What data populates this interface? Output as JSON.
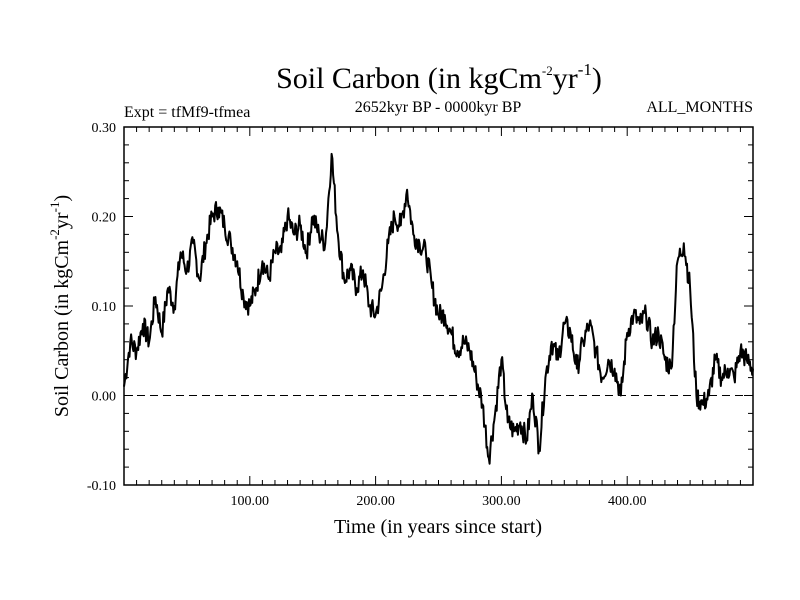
{
  "chart_data": {
    "type": "line",
    "title": {
      "base": "Soil Carbon (in kgCm",
      "sup1": "-2",
      "mid": "yr",
      "sup2": "-1",
      "end": ")"
    },
    "left_label": "Expt = tfMf9-tfmea",
    "center_label": "2652kyr BP - 0000kyr BP",
    "right_label": "ALL_MONTHS",
    "xlabel": "Time (in years since start)",
    "ylabel": {
      "base": "Soil Carbon (in kgCm",
      "sup1": "-2",
      "mid": "yr",
      "sup2": "-1",
      "end": ")"
    },
    "xlim": [
      0,
      500
    ],
    "ylim": [
      -0.1,
      0.3
    ],
    "x_ticks": [
      {
        "value": 100,
        "label": "100.00"
      },
      {
        "value": 200,
        "label": "200.00"
      },
      {
        "value": 300,
        "label": "300.00"
      },
      {
        "value": 400,
        "label": "400.00"
      }
    ],
    "y_ticks": [
      {
        "value": -0.1,
        "label": "-0.10"
      },
      {
        "value": 0.0,
        "label": "0.00"
      },
      {
        "value": 0.1,
        "label": "0.10"
      },
      {
        "value": 0.2,
        "label": "0.20"
      },
      {
        "value": 0.3,
        "label": "0.30"
      }
    ],
    "reference_line": 0.0,
    "series": [
      {
        "name": "Soil Carbon",
        "x": [
          0,
          5,
          10,
          15,
          20,
          25,
          30,
          35,
          40,
          45,
          50,
          55,
          60,
          65,
          70,
          75,
          80,
          85,
          90,
          95,
          100,
          105,
          110,
          115,
          120,
          125,
          130,
          135,
          140,
          145,
          150,
          155,
          160,
          165,
          170,
          175,
          180,
          185,
          190,
          195,
          200,
          205,
          210,
          215,
          220,
          225,
          230,
          235,
          240,
          245,
          250,
          255,
          260,
          265,
          270,
          275,
          280,
          285,
          290,
          295,
          300,
          305,
          310,
          315,
          320,
          325,
          330,
          335,
          340,
          345,
          350,
          355,
          360,
          365,
          370,
          375,
          380,
          385,
          390,
          395,
          400,
          405,
          410,
          415,
          420,
          425,
          430,
          435,
          440,
          445,
          450,
          455,
          460,
          465,
          470,
          475,
          480,
          485,
          490,
          495,
          500
        ],
        "values": [
          0.01,
          0.06,
          0.05,
          0.08,
          0.06,
          0.11,
          0.07,
          0.12,
          0.1,
          0.16,
          0.14,
          0.17,
          0.13,
          0.17,
          0.2,
          0.21,
          0.19,
          0.17,
          0.15,
          0.11,
          0.1,
          0.12,
          0.15,
          0.13,
          0.16,
          0.16,
          0.2,
          0.18,
          0.19,
          0.16,
          0.2,
          0.18,
          0.17,
          0.27,
          0.18,
          0.13,
          0.14,
          0.12,
          0.14,
          0.1,
          0.09,
          0.12,
          0.17,
          0.2,
          0.19,
          0.23,
          0.18,
          0.17,
          0.16,
          0.12,
          0.09,
          0.09,
          0.07,
          0.05,
          0.06,
          0.05,
          0.02,
          -0.01,
          -0.07,
          -0.02,
          0.04,
          -0.03,
          -0.04,
          -0.03,
          -0.05,
          0.0,
          -0.06,
          0.02,
          0.06,
          0.04,
          0.08,
          0.07,
          0.03,
          0.06,
          0.08,
          0.05,
          0.02,
          0.04,
          0.03,
          0.0,
          0.07,
          0.09,
          0.08,
          0.09,
          0.06,
          0.07,
          0.04,
          0.03,
          0.15,
          0.17,
          0.12,
          0.0,
          -0.01,
          0.0,
          0.04,
          0.02,
          0.03,
          0.02,
          0.05,
          0.04,
          0.03
        ]
      }
    ]
  }
}
